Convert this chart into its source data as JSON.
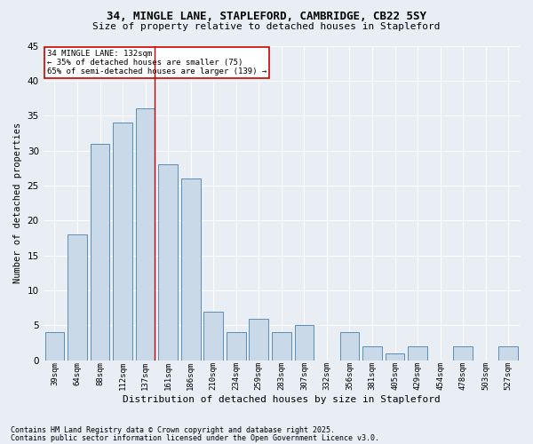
{
  "title1": "34, MINGLE LANE, STAPLEFORD, CAMBRIDGE, CB22 5SY",
  "title2": "Size of property relative to detached houses in Stapleford",
  "xlabel": "Distribution of detached houses by size in Stapleford",
  "ylabel": "Number of detached properties",
  "categories": [
    "39sqm",
    "64sqm",
    "88sqm",
    "112sqm",
    "137sqm",
    "161sqm",
    "186sqm",
    "210sqm",
    "234sqm",
    "259sqm",
    "283sqm",
    "307sqm",
    "332sqm",
    "356sqm",
    "381sqm",
    "405sqm",
    "429sqm",
    "454sqm",
    "478sqm",
    "503sqm",
    "527sqm"
  ],
  "values": [
    4,
    18,
    31,
    34,
    36,
    28,
    26,
    7,
    4,
    6,
    4,
    5,
    0,
    4,
    2,
    1,
    2,
    0,
    2,
    0,
    2
  ],
  "bar_color": "#c9d9e8",
  "bar_edge_color": "#5b8db8",
  "background_color": "#e8eef4",
  "grid_color": "#ffffff",
  "annotation_box_color": "#ffffff",
  "annotation_box_edge": "#cc0000",
  "vline_color": "#cc0000",
  "vline_x_bar_index": 4,
  "annotation_title": "34 MINGLE LANE: 132sqm",
  "annotation_line2": "← 35% of detached houses are smaller (75)",
  "annotation_line3": "65% of semi-detached houses are larger (139) →",
  "footnote1": "Contains HM Land Registry data © Crown copyright and database right 2025.",
  "footnote2": "Contains public sector information licensed under the Open Government Licence v3.0.",
  "ylim": [
    0,
    45
  ],
  "yticks": [
    0,
    5,
    10,
    15,
    20,
    25,
    30,
    35,
    40,
    45
  ]
}
